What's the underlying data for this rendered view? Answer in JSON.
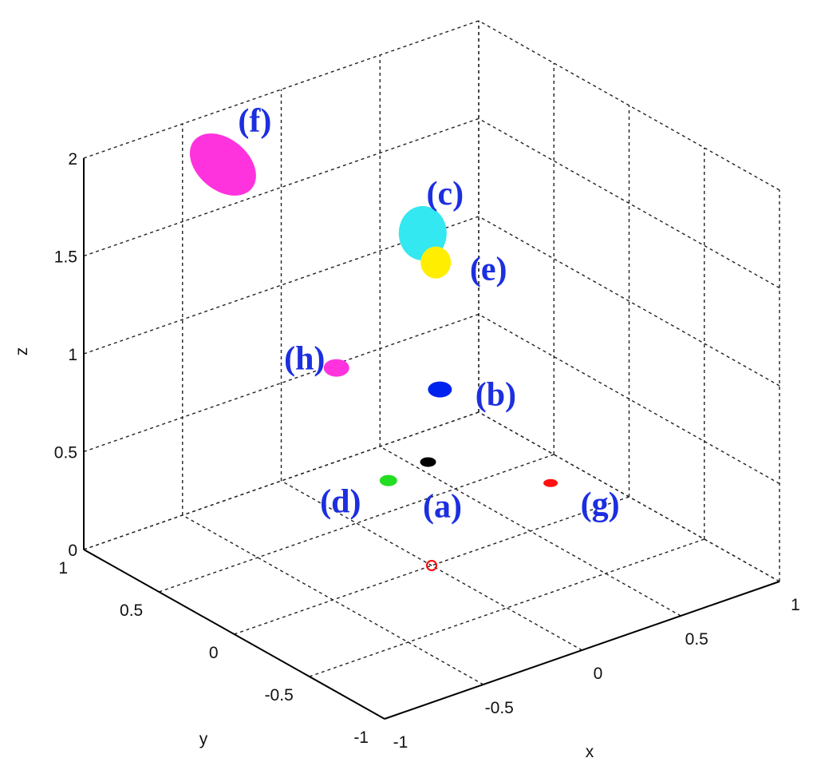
{
  "chart_data": {
    "type": "scatter",
    "projection": "3d",
    "title": "",
    "xlabel": "x",
    "ylabel": "y",
    "zlabel": "z",
    "xlim": [
      -1,
      1
    ],
    "ylim": [
      -1,
      1
    ],
    "zlim": [
      0,
      2
    ],
    "xticks": [
      "-1",
      "-0.5",
      "0",
      "0.5",
      "1"
    ],
    "yticks": [
      "-1",
      "-0.5",
      "0",
      "0.5",
      "1"
    ],
    "zticks": [
      "0",
      "0.5",
      "1",
      "1.5",
      "2"
    ],
    "grid": true,
    "origin_marker": {
      "x": 0,
      "y": 0,
      "z": 0,
      "color": "#ff0000",
      "shape": "circle"
    },
    "points": [
      {
        "label": "(a)",
        "x": 0.02,
        "y": 0.05,
        "z": 0.5,
        "color": "#000000",
        "rx": 10,
        "ry": 6
      },
      {
        "label": "(b)",
        "x": 0.08,
        "y": 0.05,
        "z": 0.85,
        "color": "#0022ee",
        "rx": 15,
        "ry": 10
      },
      {
        "label": "(c)",
        "x": -0.03,
        "y": 0.02,
        "z": 1.7,
        "color": "#33e8f0",
        "rx": 30,
        "ry": 34
      },
      {
        "label": "(d)",
        "x": -0.12,
        "y": 0.13,
        "z": 0.42,
        "color": "#22dd22",
        "rx": 11,
        "ry": 7
      },
      {
        "label": "(e)",
        "x": 0.12,
        "y": 0.13,
        "z": 1.45,
        "color": "#ffee00",
        "rx": 19,
        "ry": 20
      },
      {
        "label": "(f)",
        "x": -0.6,
        "y": 0.6,
        "z": 2.0,
        "color": "#ff33dd",
        "rx": 47,
        "ry": 32,
        "tilt": 40
      },
      {
        "label": "(g)",
        "x": 0.45,
        "y": -0.2,
        "z": 0.35,
        "color": "#ff1111",
        "rx": 9,
        "ry": 5
      },
      {
        "label": "(h)",
        "x": -0.2,
        "y": 0.37,
        "z": 0.92,
        "color": "#ff33dd",
        "rx": 16,
        "ry": 11
      }
    ]
  }
}
